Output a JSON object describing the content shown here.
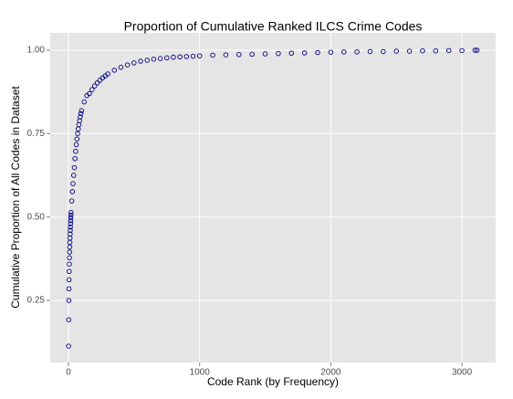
{
  "chart_data": {
    "type": "scatter",
    "title": "Proportion of Cumulative Ranked ILCS Crime Codes",
    "x_label": "Code Rank (by Frequency)",
    "y_label": "Cumulative Proportion of All Codes in Dataset",
    "color": "#000080",
    "grid": true,
    "xlim": [
      -139,
      3257
    ],
    "ylim": [
      0.064,
      1.052
    ],
    "xticks": [
      0,
      1000,
      2000,
      3000
    ],
    "yticks": [
      {
        "value": 0.25,
        "label": "0.25"
      },
      {
        "value": 0.5,
        "label": "0.50"
      },
      {
        "value": 0.75,
        "label": "0.75"
      },
      {
        "value": 1,
        "label": "1.00"
      }
    ],
    "x": [
      1,
      2,
      3,
      4,
      5,
      6,
      7,
      8,
      9,
      10,
      11,
      12,
      13,
      14,
      15,
      16,
      17,
      18,
      19,
      20,
      25,
      30,
      35,
      40,
      45,
      50,
      55,
      60,
      65,
      70,
      75,
      80,
      85,
      90,
      95,
      100,
      120,
      140,
      160,
      180,
      200,
      220,
      240,
      260,
      280,
      300,
      350,
      400,
      450,
      500,
      550,
      600,
      650,
      700,
      750,
      800,
      850,
      900,
      950,
      1000,
      1100,
      1200,
      1300,
      1400,
      1500,
      1600,
      1700,
      1800,
      1900,
      2000,
      2100,
      2200,
      2300,
      2400,
      2500,
      2600,
      2700,
      2800,
      2900,
      3000,
      3100,
      3115
    ],
    "values": [
      0.113,
      0.192,
      0.25,
      0.285,
      0.312,
      0.337,
      0.359,
      0.378,
      0.395,
      0.41,
      0.424,
      0.437,
      0.449,
      0.46,
      0.47,
      0.48,
      0.489,
      0.498,
      0.506,
      0.514,
      0.548,
      0.576,
      0.6,
      0.625,
      0.648,
      0.675,
      0.697,
      0.717,
      0.734,
      0.75,
      0.764,
      0.777,
      0.789,
      0.8,
      0.81,
      0.819,
      0.845,
      0.864,
      0.87,
      0.882,
      0.893,
      0.902,
      0.91,
      0.917,
      0.923,
      0.929,
      0.94,
      0.949,
      0.956,
      0.962,
      0.967,
      0.97,
      0.973,
      0.975,
      0.977,
      0.979,
      0.98,
      0.981,
      0.982,
      0.983,
      0.985,
      0.986,
      0.987,
      0.988,
      0.989,
      0.99,
      0.991,
      0.992,
      0.993,
      0.994,
      0.995,
      0.995,
      0.996,
      0.996,
      0.997,
      0.997,
      0.998,
      0.998,
      0.999,
      0.999,
      1.0,
      1.0
    ]
  }
}
